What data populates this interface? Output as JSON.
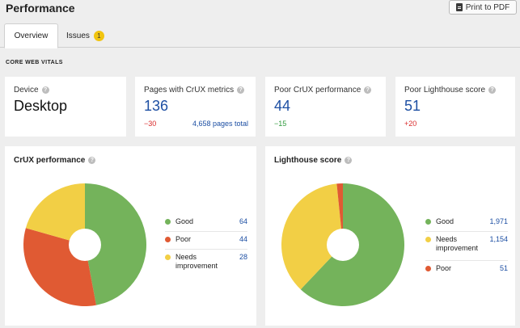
{
  "header": {
    "title": "Performance",
    "print_label": "Print to PDF"
  },
  "tabs": [
    {
      "label": "Overview",
      "active": true
    },
    {
      "label": "Issues",
      "badge": "1"
    }
  ],
  "section_label": "CORE WEB VITALS",
  "metrics": {
    "device": {
      "label": "Device",
      "value": "Desktop"
    },
    "pages_crux": {
      "label": "Pages with CrUX metrics",
      "value": "136",
      "delta": "−30",
      "total": "4,658 pages total"
    },
    "poor_crux": {
      "label": "Poor CrUX performance",
      "value": "44",
      "delta": "−15"
    },
    "poor_lighthouse": {
      "label": "Poor Lighthouse score",
      "value": "51",
      "delta": "+20"
    }
  },
  "colors": {
    "good": "#74b35b",
    "poor": "#e05a33",
    "needs": "#f2cf45",
    "link": "#1d4fa3"
  },
  "icons": {
    "help": "question-circle-icon",
    "pdf": "file-pdf-icon"
  },
  "chart_data": [
    {
      "type": "pie",
      "title": "CrUX performance",
      "donut": true,
      "legend": "right",
      "slices": [
        {
          "label": "Good",
          "value": 64,
          "display": "64",
          "color": "#74b35b"
        },
        {
          "label": "Poor",
          "value": 44,
          "display": "44",
          "color": "#e05a33"
        },
        {
          "label": "Needs improvement",
          "value": 28,
          "display": "28",
          "color": "#f2cf45"
        }
      ]
    },
    {
      "type": "pie",
      "title": "Lighthouse score",
      "donut": true,
      "legend": "right",
      "slices": [
        {
          "label": "Good",
          "value": 1971,
          "display": "1,971",
          "color": "#74b35b"
        },
        {
          "label": "Needs improvement",
          "value": 1154,
          "display": "1,154",
          "color": "#f2cf45"
        },
        {
          "label": "Poor",
          "value": 51,
          "display": "51",
          "color": "#e05a33"
        }
      ]
    }
  ]
}
